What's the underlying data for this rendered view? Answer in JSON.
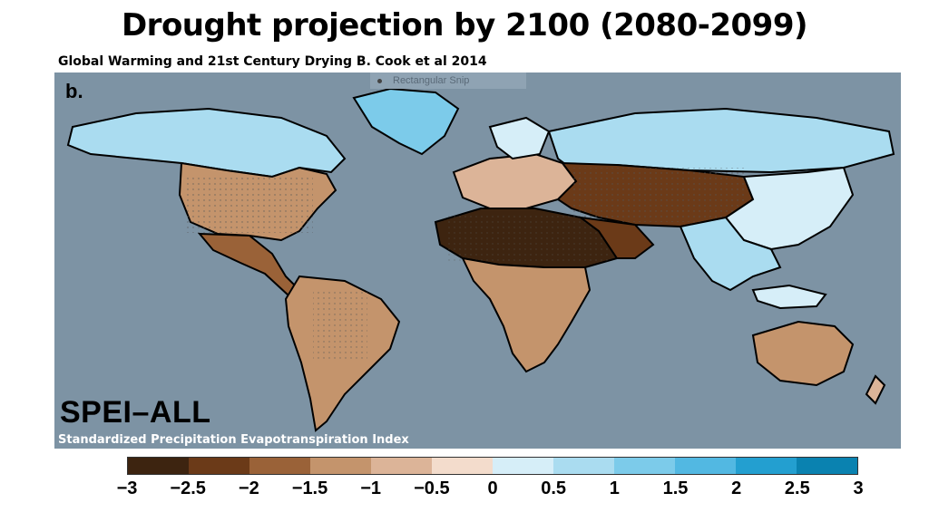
{
  "title": "Drought projection by 2100 (2080-2099)",
  "subtitle": "Global Warming and 21st Century Drying B. Cook et al 2014",
  "panel_label": "b.",
  "snip_overlay": "Rectangular Snip",
  "index_name": "SPEI–ALL",
  "index_full": "Standardized Precipitation Evapotranspiration Index",
  "colors": {
    "ocean": "#7d93a4",
    "land_outline": "#000000"
  },
  "colorbar": {
    "colors": [
      "#3d2410",
      "#6b3a18",
      "#9a6238",
      "#c4946c",
      "#dcb498",
      "#f3dccc",
      "#d6eef8",
      "#aadcf0",
      "#7ccbea",
      "#52b8e2",
      "#239fd0",
      "#0a82b0"
    ],
    "ticks": [
      "−3",
      "−2.5",
      "−2",
      "−1.5",
      "−1",
      "−0.5",
      "0",
      "0.5",
      "1",
      "1.5",
      "2",
      "2.5",
      "3"
    ]
  },
  "chart_data": {
    "type": "heatmap",
    "title": "Drought projection by 2100 (2080-2099)",
    "subtitle": "Global Warming and 21st Century Drying B. Cook et al 2014",
    "variable": "SPEI–ALL",
    "scale_min": -3,
    "scale_max": 3,
    "scale_step": 0.5
  }
}
